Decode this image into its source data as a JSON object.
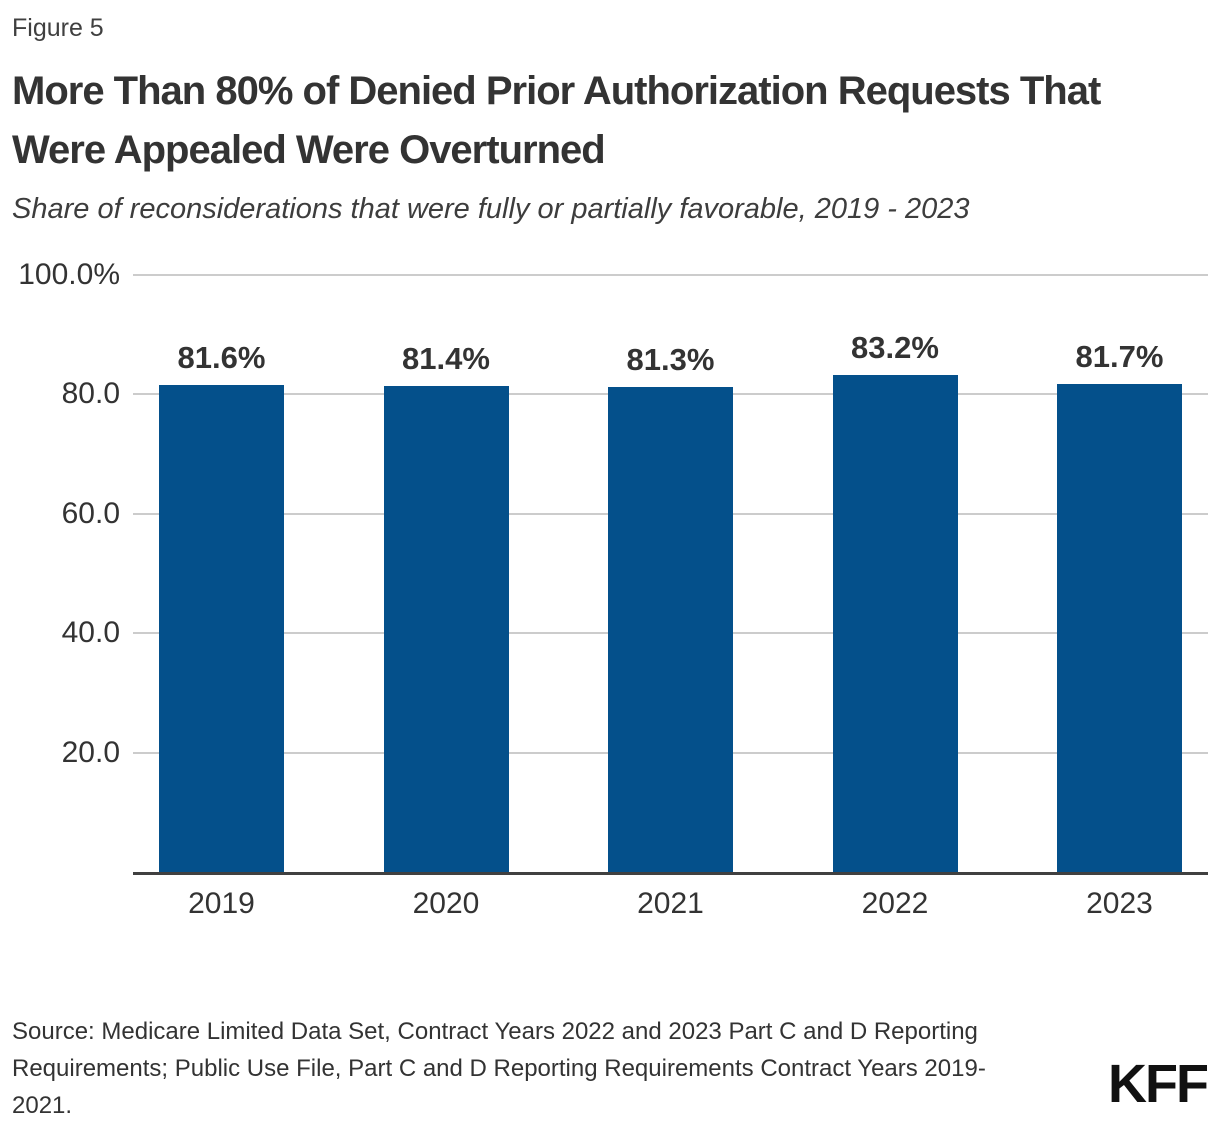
{
  "figure_label": "Figure 5",
  "title_lines": [
    "More Than 80% of Denied Prior Authorization Requests That",
    "Were Appealed Were Overturned"
  ],
  "subtitle": "Share of reconsiderations that were fully or partially favorable, 2019 - 2023",
  "source_lines": [
    "Source: Medicare Limited Data Set, Contract Years 2022 and 2023 Part C and D Reporting",
    "Requirements; Public Use File, Part C and D Reporting Requirements Contract Years 2019-",
    "2021."
  ],
  "logo_text": "KFF",
  "colors": {
    "bar": "#04508b",
    "gridline": "#cccccc",
    "axis_line": "#404040",
    "title_text": "#333333",
    "body_text": "#3d3d3d",
    "logo_text": "#111111"
  },
  "chart_data": {
    "type": "bar",
    "title": "More Than 80% of Denied Prior Authorization Requests That Were Appealed Were Overturned",
    "subtitle": "Share of reconsiderations that were fully or partially favorable, 2019 - 2023",
    "categories": [
      "2019",
      "2020",
      "2021",
      "2022",
      "2023"
    ],
    "values": [
      81.6,
      81.4,
      81.3,
      83.2,
      81.7
    ],
    "value_labels": [
      "81.6%",
      "81.4%",
      "81.3%",
      "83.2%",
      "81.7%"
    ],
    "xlabel": "",
    "ylabel": "",
    "ylim": [
      0,
      100
    ],
    "yticks": {
      "values": [
        100,
        80,
        60,
        40,
        20
      ],
      "labels": [
        "100.0%",
        "80.0",
        "60.0",
        "40.0",
        "20.0"
      ]
    },
    "grid": "horizontal",
    "legend": "none",
    "bar_color": "#04508b"
  }
}
